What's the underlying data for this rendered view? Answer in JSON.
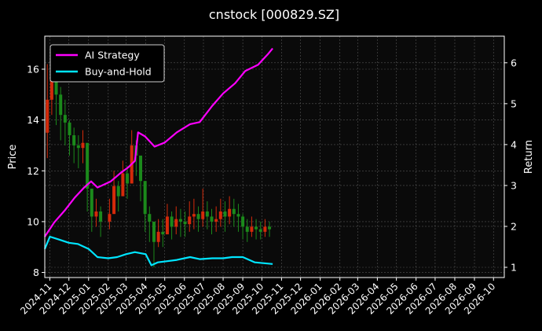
{
  "chart_data": {
    "type": "line",
    "title": "cnstock [000829.SZ]",
    "xlabel": "",
    "ylabel": "Price",
    "y2label": "Return",
    "ylim": [
      7.8,
      17.3
    ],
    "y2lim": [
      0.75,
      6.65
    ],
    "xlim": [
      "2024-10-24",
      "2026-10-18"
    ],
    "grid": true,
    "legend_position": "top-left",
    "colors": {
      "background": "#000000",
      "candle_up": "#d42a0a",
      "candle_down": "#1b8a1b",
      "ai_strategy": "#ff00ff",
      "buy_and_hold": "#00e5ff",
      "grid": "#555555",
      "text": "#ffffff"
    },
    "x_ticks": [
      "2024-11",
      "2024-12",
      "2025-01",
      "2025-02",
      "2025-03",
      "2025-04",
      "2025-05",
      "2025-06",
      "2025-07",
      "2025-08",
      "2025-09",
      "2025-10",
      "2025-11",
      "2025-12",
      "2026-01",
      "2026-02",
      "2026-03",
      "2026-04",
      "2026-05",
      "2026-06",
      "2026-07",
      "2026-08",
      "2026-09",
      "2026-10"
    ],
    "y_ticks": [
      8,
      10,
      12,
      14,
      16
    ],
    "y2_ticks": [
      1,
      2,
      3,
      4,
      5,
      6
    ],
    "price_series": {
      "type": "candlestick",
      "dates": [
        "2024-10-28",
        "2024-11-04",
        "2024-11-11",
        "2024-11-18",
        "2024-11-25",
        "2024-12-02",
        "2024-12-09",
        "2024-12-16",
        "2024-12-23",
        "2024-12-30",
        "2025-01-06",
        "2025-01-13",
        "2025-01-20",
        "2025-02-03",
        "2025-02-10",
        "2025-02-17",
        "2025-02-24",
        "2025-03-03",
        "2025-03-10",
        "2025-03-17",
        "2025-03-24",
        "2025-03-31",
        "2025-04-07",
        "2025-04-14",
        "2025-04-21",
        "2025-04-28",
        "2025-05-05",
        "2025-05-12",
        "2025-05-19",
        "2025-05-26",
        "2025-06-02",
        "2025-06-09",
        "2025-06-16",
        "2025-06-23",
        "2025-06-30",
        "2025-07-07",
        "2025-07-14",
        "2025-07-21",
        "2025-07-28",
        "2025-08-04",
        "2025-08-11",
        "2025-08-18",
        "2025-08-25",
        "2025-09-01",
        "2025-09-08",
        "2025-09-15",
        "2025-09-22",
        "2025-09-29",
        "2025-10-06",
        "2025-10-13"
      ],
      "close": [
        14.8,
        15.6,
        15.0,
        14.2,
        13.9,
        13.4,
        13.0,
        12.9,
        13.1,
        11.3,
        10.2,
        10.4,
        10.0,
        10.3,
        11.4,
        11.0,
        11.9,
        11.5,
        13.0,
        12.6,
        11.6,
        10.3,
        10.0,
        9.2,
        9.6,
        9.5,
        10.2,
        9.8,
        10.1,
        10.0,
        9.9,
        10.2,
        10.3,
        10.1,
        10.4,
        10.2,
        10.0,
        10.1,
        10.4,
        10.2,
        10.5,
        10.3,
        10.2,
        9.8,
        9.6,
        9.8,
        9.7,
        9.6,
        9.8,
        9.7
      ],
      "high": [
        16.2,
        16.7,
        16.0,
        15.3,
        14.8,
        14.0,
        13.7,
        13.4,
        13.6,
        12.1,
        10.9,
        10.9,
        10.6,
        10.9,
        12.0,
        11.6,
        12.4,
        12.2,
        13.6,
        13.2,
        12.3,
        10.9,
        10.6,
        9.9,
        10.1,
        10.1,
        10.7,
        10.4,
        10.6,
        10.5,
        10.4,
        10.8,
        10.9,
        10.6,
        11.3,
        10.8,
        10.5,
        10.6,
        10.9,
        10.8,
        11.0,
        10.9,
        10.7,
        10.3,
        10.1,
        10.2,
        10.1,
        10.0,
        10.1,
        10.0
      ],
      "low": [
        12.5,
        14.2,
        13.8,
        13.2,
        13.0,
        12.6,
        12.3,
        12.1,
        12.3,
        10.4,
        9.6,
        9.8,
        9.4,
        9.7,
        10.6,
        10.4,
        11.2,
        10.9,
        12.0,
        11.8,
        10.8,
        9.6,
        9.2,
        8.2,
        9.0,
        9.0,
        9.5,
        9.3,
        9.5,
        9.4,
        9.4,
        9.6,
        9.7,
        9.6,
        9.8,
        9.7,
        9.5,
        9.6,
        9.8,
        9.6,
        9.9,
        9.8,
        9.6,
        9.3,
        9.2,
        9.4,
        9.3,
        9.3,
        9.4,
        9.4
      ]
    },
    "series": [
      {
        "name": "AI Strategy",
        "axis": "right",
        "x": [
          "2024-10-24",
          "2024-11-08",
          "2024-11-25",
          "2024-12-10",
          "2024-12-25",
          "2025-01-05",
          "2025-01-15",
          "2025-02-05",
          "2025-02-20",
          "2025-03-05",
          "2025-03-15",
          "2025-03-20",
          "2025-03-31",
          "2025-04-15",
          "2025-05-01",
          "2025-05-20",
          "2025-06-10",
          "2025-06-25",
          "2025-07-15",
          "2025-08-01",
          "2025-08-20",
          "2025-09-05",
          "2025-09-25",
          "2025-10-10",
          "2025-10-18"
        ],
        "values": [
          1.75,
          2.1,
          2.4,
          2.7,
          2.95,
          3.1,
          2.95,
          3.1,
          3.3,
          3.45,
          3.6,
          4.3,
          4.2,
          3.95,
          4.05,
          4.3,
          4.5,
          4.55,
          4.95,
          5.25,
          5.5,
          5.8,
          5.95,
          6.2,
          6.35
        ]
      },
      {
        "name": "Buy-and-Hold",
        "axis": "right",
        "x": [
          "2024-10-24",
          "2024-11-01",
          "2024-11-15",
          "2024-12-01",
          "2024-12-15",
          "2025-01-01",
          "2025-01-15",
          "2025-02-01",
          "2025-02-15",
          "2025-03-01",
          "2025-03-15",
          "2025-04-01",
          "2025-04-10",
          "2025-04-20",
          "2025-05-05",
          "2025-05-20",
          "2025-06-10",
          "2025-06-25",
          "2025-07-15",
          "2025-08-01",
          "2025-08-15",
          "2025-09-01",
          "2025-09-20",
          "2025-10-05",
          "2025-10-18"
        ],
        "values": [
          1.45,
          1.75,
          1.68,
          1.6,
          1.57,
          1.45,
          1.25,
          1.22,
          1.25,
          1.32,
          1.37,
          1.32,
          1.05,
          1.12,
          1.15,
          1.18,
          1.25,
          1.2,
          1.22,
          1.22,
          1.25,
          1.25,
          1.12,
          1.1,
          1.08
        ]
      }
    ]
  }
}
